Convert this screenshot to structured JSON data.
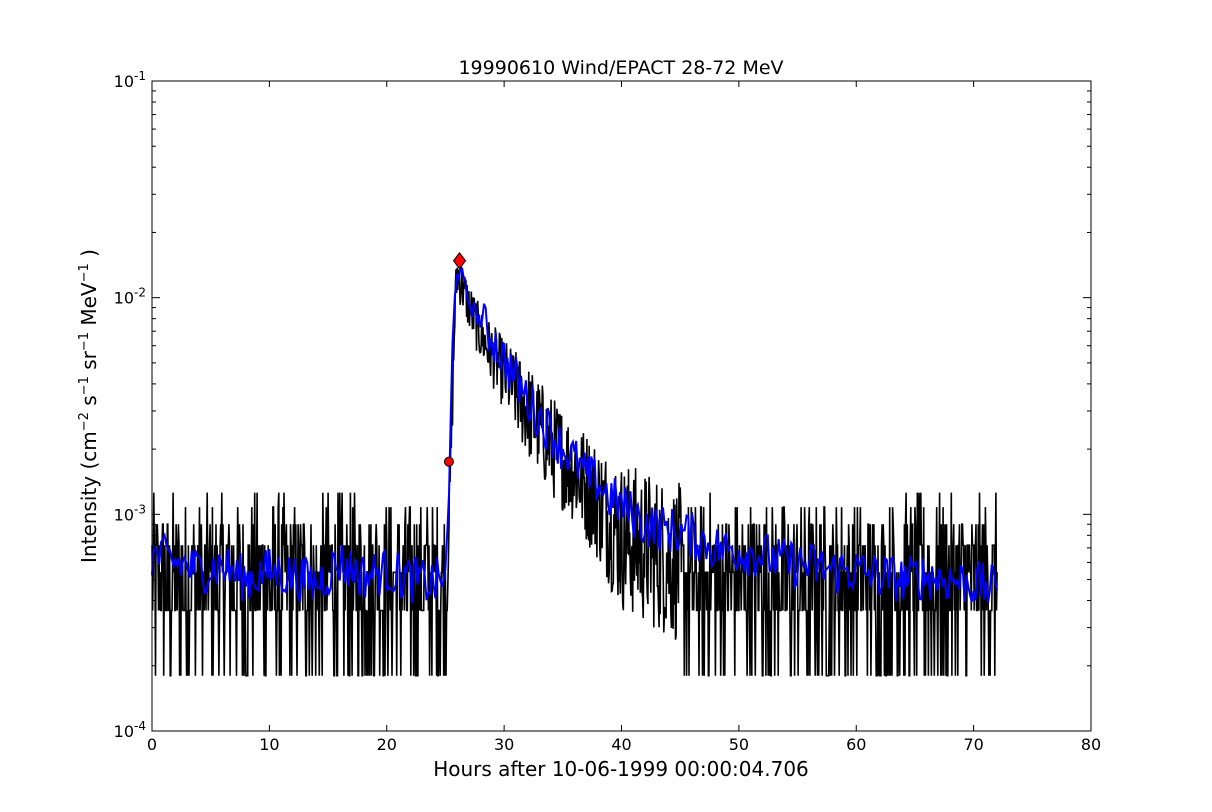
{
  "chart_data": {
    "type": "line",
    "title": "19990610 Wind/EPACT 28-72 MeV",
    "xlabel": "Hours after 10-06-1999 00:00:04.706",
    "ylabel_text": "Intensity (cm",
    "ylabel_parts": [
      "Intensity (cm",
      "−2",
      " s",
      "−1",
      " sr",
      "−1",
      " MeV",
      "−1",
      " )"
    ],
    "xlim": [
      0,
      80
    ],
    "ylim": [
      0.0001,
      0.1
    ],
    "yscale": "log",
    "grid": false,
    "x_ticks": [
      0,
      10,
      20,
      30,
      40,
      50,
      60,
      70,
      80
    ],
    "x_tick_labels": [
      "0",
      "10",
      "20",
      "30",
      "40",
      "50",
      "60",
      "70",
      "80"
    ],
    "y_ticks": [
      0.0001,
      0.001,
      0.01,
      0.1
    ],
    "y_tick_base": "10",
    "y_tick_exponents": [
      "-4",
      "-3",
      "-2",
      "-1"
    ],
    "colors": {
      "raw": "#000000",
      "smoothed": "#0000ff",
      "markers": "#ff0000"
    },
    "series": [
      {
        "role": "raw",
        "envelope": [
          {
            "x": 0,
            "low": 0.00018,
            "high": 0.0013
          },
          {
            "x": 5,
            "low": 0.00018,
            "high": 0.0013
          },
          {
            "x": 10,
            "low": 0.00018,
            "high": 0.0013
          },
          {
            "x": 15,
            "low": 0.00018,
            "high": 0.0013
          },
          {
            "x": 20,
            "low": 0.00018,
            "high": 0.0013
          },
          {
            "x": 25,
            "low": 0.00018,
            "high": 0.0013
          },
          {
            "x": 25.4,
            "low": 0.001,
            "high": 0.0018
          },
          {
            "x": 25.8,
            "low": 0.006,
            "high": 0.012
          },
          {
            "x": 26.0,
            "low": 0.01,
            "high": 0.017
          },
          {
            "x": 27,
            "low": 0.007,
            "high": 0.012
          },
          {
            "x": 28,
            "low": 0.005,
            "high": 0.009
          },
          {
            "x": 30,
            "low": 0.003,
            "high": 0.0065
          },
          {
            "x": 32,
            "low": 0.0018,
            "high": 0.005
          },
          {
            "x": 34,
            "low": 0.0012,
            "high": 0.0036
          },
          {
            "x": 36,
            "low": 0.0009,
            "high": 0.0028
          },
          {
            "x": 38,
            "low": 0.0006,
            "high": 0.0022
          },
          {
            "x": 40,
            "low": 0.00035,
            "high": 0.0018
          },
          {
            "x": 45,
            "low": 0.00025,
            "high": 0.0014
          },
          {
            "x": 50,
            "low": 0.00018,
            "high": 0.0014
          },
          {
            "x": 55,
            "low": 0.00018,
            "high": 0.0013
          },
          {
            "x": 60,
            "low": 0.00018,
            "high": 0.0013
          },
          {
            "x": 65,
            "low": 0.00018,
            "high": 0.0013
          },
          {
            "x": 72,
            "low": 0.00018,
            "high": 0.0013
          }
        ]
      },
      {
        "role": "smoothed",
        "x": [
          0,
          2,
          4,
          6,
          8,
          10,
          12,
          14,
          16,
          18,
          20,
          22,
          24,
          25,
          25.3,
          25.6,
          25.8,
          26,
          26.3,
          26.7,
          27,
          28,
          29,
          30,
          31,
          32,
          33,
          34,
          35,
          36,
          37,
          38,
          39,
          40,
          42,
          44,
          46,
          48,
          50,
          52,
          54,
          56,
          58,
          60,
          62,
          64,
          66,
          68,
          70,
          72
        ],
        "y": [
          0.00065,
          0.0006,
          0.00055,
          0.00058,
          0.0005,
          0.00055,
          0.00052,
          0.00048,
          0.0006,
          0.00052,
          0.00055,
          0.0005,
          0.00048,
          0.00052,
          0.0012,
          0.006,
          0.011,
          0.0135,
          0.013,
          0.011,
          0.0095,
          0.0078,
          0.0065,
          0.0052,
          0.0042,
          0.0034,
          0.0028,
          0.0024,
          0.002,
          0.0018,
          0.0015,
          0.0014,
          0.0012,
          0.0011,
          0.0009,
          0.00085,
          0.0008,
          0.0007,
          0.00068,
          0.00065,
          0.0006,
          0.00058,
          0.00055,
          0.00055,
          0.00052,
          0.0005,
          0.00052,
          0.0005,
          0.00048,
          0.00045
        ]
      },
      {
        "role": "markers",
        "points": [
          {
            "x": 25.3,
            "y": 0.00175,
            "marker": "circle"
          },
          {
            "x": 26.2,
            "y": 0.0148,
            "marker": "diamond"
          }
        ]
      }
    ]
  }
}
